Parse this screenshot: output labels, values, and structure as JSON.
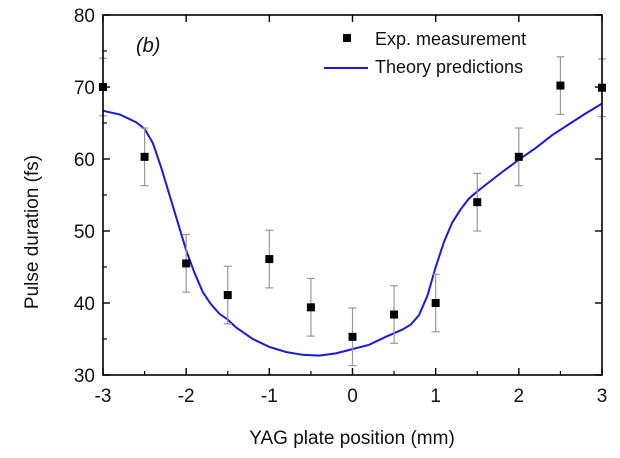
{
  "chart_data": {
    "type": "scatter",
    "panel_label": "(b)",
    "xlabel": "YAG plate position (mm)",
    "ylabel": "Pulse duration (fs)",
    "xlim": [
      -3,
      3
    ],
    "ylim": [
      30,
      80
    ],
    "xticks": [
      -3,
      -2,
      -1,
      0,
      1,
      2,
      3
    ],
    "yticks": [
      30,
      40,
      50,
      60,
      70,
      80
    ],
    "legend_position": "top-right",
    "series": [
      {
        "name": "Exp. measurement",
        "kind": "points_with_errorbars",
        "color": "#000000",
        "errorbar_color": "#999999",
        "x": [
          -3,
          -2.5,
          -2,
          -1.5,
          -1,
          -0.5,
          0,
          0.5,
          1,
          1.5,
          2,
          2.5,
          3
        ],
        "y": [
          70,
          60.3,
          45.5,
          41.1,
          46.1,
          39.4,
          35.3,
          38.4,
          40,
          54,
          60.3,
          70.2,
          69.9
        ],
        "err": [
          4,
          4,
          4,
          4,
          4,
          4,
          4,
          4,
          4,
          4,
          4,
          4,
          4
        ]
      },
      {
        "name": "Theory predictions",
        "kind": "line",
        "color": "#1a1adb",
        "x": [
          -3,
          -2.8,
          -2.6,
          -2.5,
          -2.4,
          -2.3,
          -2.2,
          -2.1,
          -2,
          -1.9,
          -1.8,
          -1.7,
          -1.6,
          -1.5,
          -1.4,
          -1.2,
          -1,
          -0.8,
          -0.6,
          -0.4,
          -0.2,
          0,
          0.2,
          0.4,
          0.6,
          0.7,
          0.8,
          0.9,
          1,
          1.1,
          1.2,
          1.3,
          1.4,
          1.5,
          1.6,
          1.8,
          2,
          2.2,
          2.4,
          2.6,
          2.8,
          3
        ],
        "y": [
          66.7,
          66.2,
          65.1,
          64.2,
          62.2,
          58.8,
          55.0,
          51.2,
          47.3,
          44.2,
          41.5,
          39.8,
          38.5,
          37.7,
          36.6,
          35.0,
          33.9,
          33.2,
          32.8,
          32.7,
          33.0,
          33.6,
          34.2,
          35.3,
          36.3,
          37.0,
          38.3,
          41.0,
          45.0,
          48.5,
          51.2,
          53.0,
          54.5,
          55.5,
          56.4,
          58.2,
          59.9,
          61.5,
          63.3,
          64.8,
          66.3,
          67.7
        ]
      }
    ]
  }
}
